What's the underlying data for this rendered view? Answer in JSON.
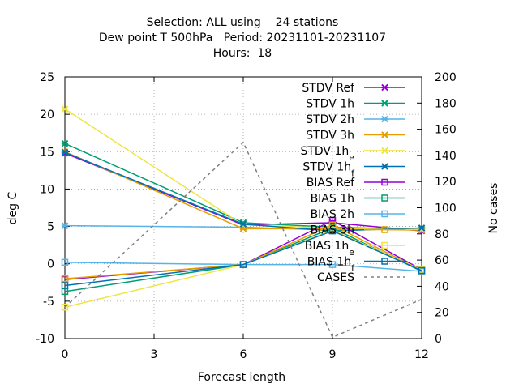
{
  "chart_data": {
    "type": "line",
    "title_lines": [
      "Selection: ALL using    24 stations",
      "Dew point T 500hPa   Period: 20231101-20231107",
      "Hours:  18"
    ],
    "xlabel": "Forecast length",
    "ylabel": "deg C",
    "y2label": "No cases",
    "xlim": [
      0,
      12
    ],
    "ylim": [
      -10,
      25
    ],
    "y2lim": [
      0,
      200
    ],
    "x_ticks": [
      0,
      3,
      6,
      9,
      12
    ],
    "y_ticks": [
      -10,
      -5,
      0,
      5,
      10,
      15,
      20,
      25
    ],
    "y2_ticks": [
      0,
      20,
      40,
      60,
      80,
      100,
      120,
      140,
      160,
      180,
      200
    ],
    "grid": true,
    "legend_position": "top-right",
    "x": [
      0,
      6,
      9,
      12
    ],
    "series": [
      {
        "name": "STDV Ref",
        "axis": "y",
        "marker": "x-star",
        "color": "#9400d3",
        "values": [
          14.8,
          5.2,
          5.5,
          4.4
        ]
      },
      {
        "name": "STDV 1h",
        "axis": "y",
        "marker": "x-star",
        "color": "#009e73",
        "values": [
          16.1,
          5.5,
          4.9,
          4.6
        ]
      },
      {
        "name": "STDV 2h",
        "axis": "y",
        "marker": "x-star",
        "color": "#56b4e9",
        "values": [
          5.1,
          4.9,
          4.5,
          4.7
        ]
      },
      {
        "name": "STDV 3h",
        "axis": "y",
        "marker": "x-star",
        "color": "#e69f00",
        "values": [
          15.0,
          4.7,
          4.7,
          4.5
        ]
      },
      {
        "name": "STDV 1h_e",
        "axis": "y",
        "marker": "x-star",
        "color": "#f0e442",
        "values": [
          20.7,
          5.2,
          4.8,
          4.6
        ]
      },
      {
        "name": "STDV 1h_f",
        "axis": "y",
        "marker": "x-star",
        "color": "#0072b2",
        "values": [
          14.9,
          5.3,
          4.4,
          4.8
        ]
      },
      {
        "name": "BIAS Ref",
        "axis": "y",
        "marker": "square",
        "color": "#9400d3",
        "values": [
          -2.1,
          -0.1,
          5.8,
          -0.8
        ]
      },
      {
        "name": "BIAS 1h",
        "axis": "y",
        "marker": "square",
        "color": "#009e73",
        "values": [
          -3.7,
          -0.1,
          4.8,
          -1.0
        ]
      },
      {
        "name": "BIAS 2h",
        "axis": "y",
        "marker": "square",
        "color": "#56b4e9",
        "values": [
          0.2,
          -0.1,
          -0.1,
          -1.0
        ]
      },
      {
        "name": "BIAS 3h",
        "axis": "y",
        "marker": "square",
        "color": "#e69f00",
        "values": [
          -2.0,
          -0.1,
          5.2,
          -0.9
        ]
      },
      {
        "name": "BIAS 1h_e",
        "axis": "y",
        "marker": "square",
        "color": "#f0e442",
        "values": [
          -5.8,
          -0.1,
          4.5,
          -0.8
        ]
      },
      {
        "name": "BIAS 1h_f",
        "axis": "y",
        "marker": "square",
        "color": "#0072b2",
        "values": [
          -2.9,
          -0.1,
          4.4,
          -0.9
        ]
      },
      {
        "name": "CASES",
        "axis": "y2",
        "marker": "none",
        "dashed": true,
        "color": "#808080",
        "values": [
          24,
          150,
          1,
          30
        ]
      }
    ]
  }
}
